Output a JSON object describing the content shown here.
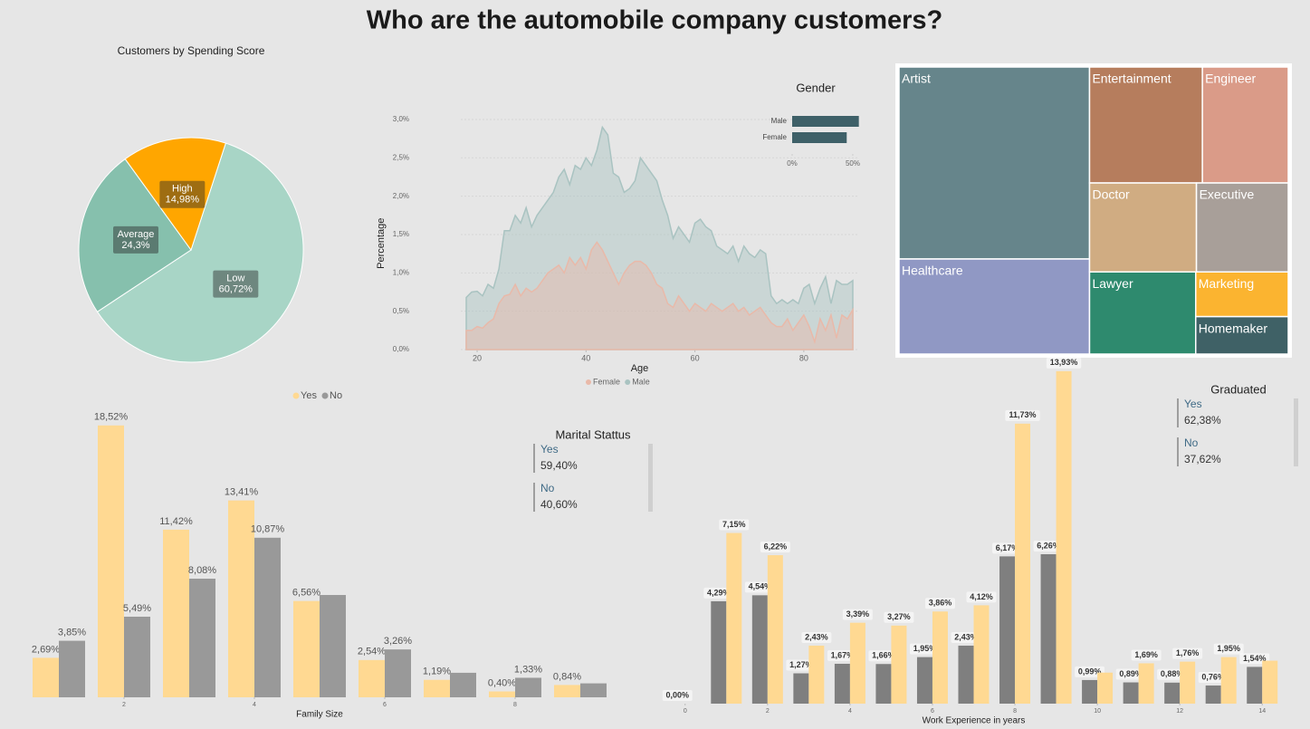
{
  "title": "Who are the automobile company customers?",
  "chart_data": [
    {
      "type": "pie",
      "title": "Customers by Spending Score",
      "categories": [
        "Low",
        "Average",
        "High"
      ],
      "values": [
        60.72,
        24.3,
        14.98
      ],
      "value_labels": [
        "60,72%",
        "24,3%",
        "14,98%"
      ],
      "colors": [
        "#a8d5c6",
        "#86c0ad",
        "#ffa600"
      ]
    },
    {
      "type": "area",
      "x": [
        18,
        19,
        20,
        21,
        22,
        23,
        24,
        25,
        26,
        27,
        28,
        29,
        30,
        31,
        32,
        33,
        34,
        35,
        36,
        37,
        38,
        39,
        40,
        41,
        42,
        43,
        44,
        45,
        46,
        47,
        48,
        49,
        50,
        51,
        52,
        53,
        54,
        55,
        56,
        57,
        58,
        59,
        60,
        61,
        62,
        63,
        64,
        65,
        66,
        67,
        68,
        69,
        70,
        71,
        72,
        73,
        74,
        75,
        76,
        77,
        78,
        79,
        80,
        81,
        82,
        83,
        84,
        85,
        86,
        87,
        88,
        89
      ],
      "series": [
        {
          "name": "Female",
          "color": "#e9b9a9",
          "values": [
            0.25,
            0.25,
            0.3,
            0.28,
            0.35,
            0.4,
            0.6,
            0.7,
            0.72,
            0.85,
            0.7,
            0.8,
            0.75,
            0.8,
            0.9,
            1.0,
            1.05,
            1.1,
            1.0,
            1.2,
            1.1,
            1.2,
            1.05,
            1.3,
            1.4,
            1.3,
            1.15,
            1.0,
            0.85,
            1.0,
            1.1,
            1.15,
            1.15,
            1.1,
            1.0,
            0.85,
            0.8,
            0.6,
            0.55,
            0.7,
            0.6,
            0.5,
            0.6,
            0.55,
            0.5,
            0.6,
            0.55,
            0.5,
            0.55,
            0.6,
            0.5,
            0.55,
            0.45,
            0.5,
            0.55,
            0.45,
            0.35,
            0.3,
            0.3,
            0.4,
            0.25,
            0.35,
            0.45,
            0.3,
            0.1,
            0.4,
            0.25,
            0.45,
            0.15,
            0.45,
            0.4,
            0.52
          ]
        },
        {
          "name": "Male",
          "color": "#a9c3c1",
          "values": [
            0.68,
            0.75,
            0.76,
            0.7,
            0.85,
            0.8,
            1.05,
            1.55,
            1.55,
            1.75,
            1.65,
            1.85,
            1.6,
            1.75,
            1.85,
            1.95,
            2.05,
            2.25,
            2.35,
            2.15,
            2.4,
            2.35,
            2.5,
            2.4,
            2.6,
            2.9,
            2.8,
            2.3,
            2.25,
            2.05,
            2.1,
            2.2,
            2.5,
            2.4,
            2.3,
            2.2,
            1.95,
            1.75,
            1.45,
            1.6,
            1.5,
            1.4,
            1.65,
            1.7,
            1.6,
            1.55,
            1.35,
            1.3,
            1.25,
            1.35,
            1.15,
            1.35,
            1.25,
            1.2,
            1.3,
            1.25,
            0.7,
            0.6,
            0.65,
            0.6,
            0.65,
            0.6,
            0.8,
            0.85,
            0.6,
            0.8,
            0.95,
            0.6,
            0.9,
            0.85,
            0.85,
            0.9
          ]
        }
      ],
      "xlim": [
        17,
        90
      ],
      "ylim": [
        0,
        3.1
      ],
      "xticks": [
        20,
        40,
        60,
        80
      ],
      "yticks": [
        {
          "value": 0,
          "label": "0,0%"
        },
        {
          "value": 0.5,
          "label": "0,5%"
        },
        {
          "value": 1,
          "label": "1,0%"
        },
        {
          "value": 1.5,
          "label": "1,5%"
        },
        {
          "value": 2,
          "label": "2,0%"
        },
        {
          "value": 2.5,
          "label": "2,5%"
        },
        {
          "value": 3,
          "label": "3,0%"
        }
      ],
      "xlabel": "Age",
      "ylabel": "Percentage",
      "grid": true,
      "legend": "bottom"
    },
    {
      "type": "hbar",
      "title": "Gender",
      "categories": [
        "Male",
        "Female"
      ],
      "values": [
        55,
        45
      ],
      "color": "#3e6068",
      "xlim": [
        0,
        56
      ],
      "xticks": [
        {
          "value": 0,
          "label": "0%"
        },
        {
          "value": 50,
          "label": "50%"
        }
      ]
    },
    {
      "type": "treemap",
      "categories": [
        "Artist",
        "Healthcare",
        "Entertainment",
        "Engineer",
        "Doctor",
        "Executive",
        "Lawyer",
        "Marketing",
        "Homemaker"
      ],
      "values": [
        32.7,
        16.2,
        11.7,
        8.9,
        8.5,
        7.3,
        7.8,
        3.7,
        3.1
      ],
      "colors": [
        "#66858b",
        "#9098c4",
        "#b67d5d",
        "#da9b88",
        "#d0ac82",
        "#a89f99",
        "#2e8a6e",
        "#fbb430",
        "#3f6166"
      ]
    },
    {
      "type": "bar",
      "x": [
        1,
        2,
        3,
        4,
        5,
        6,
        7,
        8,
        9
      ],
      "series": [
        {
          "name": "Yes",
          "color": "#ffd992",
          "values": [
            2.69,
            18.52,
            11.42,
            13.41,
            6.56,
            2.54,
            1.19,
            0.4,
            0.84
          ],
          "value_labels": [
            "2,69%",
            "18,52%",
            "11,42%",
            "13,41%",
            "6,56%",
            "2,54%",
            "1,19%",
            "0,40%",
            "0,84%"
          ]
        },
        {
          "name": "No",
          "color": "#999999",
          "values": [
            3.85,
            5.49,
            8.08,
            10.87,
            6.97,
            3.26,
            1.67,
            1.33,
            0.95
          ],
          "value_labels": [
            "3,85%",
            "5,49%",
            "8,08%",
            "10,87%",
            null,
            "3,26%",
            null,
            "1,33%",
            null
          ]
        }
      ],
      "xlim": [
        0.5,
        9.5
      ],
      "ylim": [
        0,
        19
      ],
      "xticks": [
        2,
        4,
        6,
        8
      ],
      "xlabel": "Family Size",
      "legend": "top"
    },
    {
      "type": "bar",
      "x": [
        0,
        1,
        2,
        3,
        4,
        5,
        6,
        7,
        8,
        9,
        10,
        11,
        12,
        13,
        14
      ],
      "series": [
        {
          "color": "#7f7f7f",
          "values": [
            0,
            4.29,
            4.54,
            1.27,
            1.67,
            1.66,
            1.95,
            2.43,
            6.17,
            6.26,
            0.99,
            0.89,
            0.88,
            0.76,
            1.54
          ],
          "value_labels": [
            "0,00%",
            "4,29%",
            "4,54%",
            "1,27%",
            "1,67%",
            "1,66%",
            "1,95%",
            "2,43%",
            "6,17%",
            "6,26%",
            "0,99%",
            "0,89%",
            "0,88%",
            "0,76%",
            "1,54%"
          ]
        },
        {
          "color": "#ffd992",
          "values": [
            null,
            7.15,
            6.22,
            2.43,
            3.39,
            3.27,
            3.86,
            4.12,
            11.73,
            13.93,
            1.3,
            1.69,
            1.76,
            1.95,
            1.8
          ],
          "value_labels": [
            null,
            "7,15%",
            "6,22%",
            "2,43%",
            "3,39%",
            "3,27%",
            "3,86%",
            "4,12%",
            "11,73%",
            "13,93%",
            null,
            "1,69%",
            "1,76%",
            "1,95%",
            null
          ]
        }
      ],
      "xlim": [
        -0.5,
        14.5
      ],
      "ylim": [
        0,
        14
      ],
      "xticks": [
        0,
        2,
        4,
        6,
        8,
        10,
        12,
        14
      ],
      "xlabel": "Work Experience in years",
      "boxed_labels": true
    }
  ],
  "cards": [
    {
      "title": "Marital Stattus",
      "items": [
        {
          "label": "Yes",
          "value": "59,40%"
        },
        {
          "label": "No",
          "value": "40,60%"
        }
      ]
    },
    {
      "title": "Graduated",
      "items": [
        {
          "label": "Yes",
          "value": "62,38%"
        },
        {
          "label": "No",
          "value": "37,62%"
        }
      ]
    }
  ]
}
